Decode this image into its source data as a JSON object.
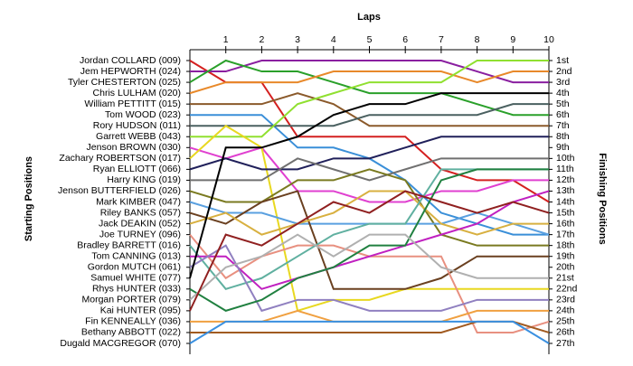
{
  "chart_data": {
    "type": "lap",
    "title": "Laps",
    "y_label": "Starting Positions",
    "y2_label": "Finishing Positions",
    "x": [
      0,
      1,
      2,
      3,
      4,
      5,
      6,
      7,
      8,
      9,
      10
    ],
    "xlim": [
      0,
      10
    ],
    "xticks": [
      1,
      2,
      3,
      4,
      5,
      6,
      7,
      8,
      9,
      10
    ],
    "ylim": [
      1,
      27
    ],
    "yticks": [
      {
        "value": 1,
        "label": "Jordan COLLARD (009)"
      },
      {
        "value": 2,
        "label": "Jem HEPWORTH (024)"
      },
      {
        "value": 3,
        "label": "Tyler CHESTERTON (025)"
      },
      {
        "value": 4,
        "label": "Chris LULHAM (020)"
      },
      {
        "value": 5,
        "label": "William PETTITT (015)"
      },
      {
        "value": 6,
        "label": "Tom WOOD (023)"
      },
      {
        "value": 7,
        "label": "Rory HUDSON (011)"
      },
      {
        "value": 8,
        "label": "Garrett WEBB (043)"
      },
      {
        "value": 9,
        "label": "Jenson BROWN (030)"
      },
      {
        "value": 10,
        "label": "Zachary ROBERTSON (017)"
      },
      {
        "value": 11,
        "label": "Ryan ELLIOTT (066)"
      },
      {
        "value": 12,
        "label": "Harry KING (019)"
      },
      {
        "value": 13,
        "label": "Jenson BUTTERFIELD (026)"
      },
      {
        "value": 14,
        "label": "Mark KIMBER (047)"
      },
      {
        "value": 15,
        "label": "Riley BANKS (057)"
      },
      {
        "value": 16,
        "label": "Jack DEAKIN (052)"
      },
      {
        "value": 17,
        "label": "Joe TURNEY (096)"
      },
      {
        "value": 18,
        "label": "Bradley BARRETT (016)"
      },
      {
        "value": 19,
        "label": "Tom CANNING (013)"
      },
      {
        "value": 20,
        "label": "Gordon MUTCH (061)"
      },
      {
        "value": 21,
        "label": "Samuel WHITE (077)"
      },
      {
        "value": 22,
        "label": "Rhys HUNTER (033)"
      },
      {
        "value": 23,
        "label": "Morgan PORTER (079)"
      },
      {
        "value": 24,
        "label": "Kai HUNTER (095)"
      },
      {
        "value": 25,
        "label": "Fin KENNEALLY (036)"
      },
      {
        "value": 26,
        "label": "Bethany ABBOTT (022)"
      },
      {
        "value": 27,
        "label": "Dugald MACGREGOR (070)"
      }
    ],
    "y2lim": [
      1,
      27
    ],
    "y2ticks": [
      {
        "value": 1,
        "label": "1st"
      },
      {
        "value": 2,
        "label": "2nd"
      },
      {
        "value": 3,
        "label": "3rd"
      },
      {
        "value": 4,
        "label": "4th"
      },
      {
        "value": 5,
        "label": "5th"
      },
      {
        "value": 6,
        "label": "6th"
      },
      {
        "value": 7,
        "label": "7th"
      },
      {
        "value": 8,
        "label": "8th"
      },
      {
        "value": 9,
        "label": "9th"
      },
      {
        "value": 10,
        "label": "10th"
      },
      {
        "value": 11,
        "label": "11th"
      },
      {
        "value": 12,
        "label": "12th"
      },
      {
        "value": 13,
        "label": "13th"
      },
      {
        "value": 14,
        "label": "14th"
      },
      {
        "value": 15,
        "label": "15th"
      },
      {
        "value": 16,
        "label": "16th"
      },
      {
        "value": 17,
        "label": "17th"
      },
      {
        "value": 18,
        "label": "18th"
      },
      {
        "value": 19,
        "label": "19th"
      },
      {
        "value": 20,
        "label": "20th"
      },
      {
        "value": 21,
        "label": "21st"
      },
      {
        "value": 22,
        "label": "22nd"
      },
      {
        "value": 23,
        "label": "23rd"
      },
      {
        "value": 24,
        "label": "24th"
      },
      {
        "value": 25,
        "label": "25th"
      },
      {
        "value": 26,
        "label": "26th"
      },
      {
        "value": 27,
        "label": "27th"
      }
    ],
    "series": [
      {
        "color": "#d42020",
        "values": [
          1,
          3,
          3,
          8,
          8,
          8,
          8,
          11,
          12,
          12,
          14
        ]
      },
      {
        "color": "#8a1fa0",
        "values": [
          2,
          2,
          1,
          1,
          1,
          1,
          1,
          1,
          2,
          3,
          3
        ]
      },
      {
        "color": "#2aa02a",
        "values": [
          3,
          1,
          2,
          2,
          3,
          4,
          4,
          4,
          5,
          6,
          6
        ]
      },
      {
        "color": "#e8892a",
        "values": [
          4,
          3,
          3,
          3,
          2,
          2,
          2,
          2,
          3,
          2,
          2
        ]
      },
      {
        "color": "#8b5a2b",
        "values": [
          5,
          5,
          5,
          4,
          5,
          7,
          7,
          7,
          7,
          7,
          7
        ]
      },
      {
        "color": "#3a8fd8",
        "values": [
          6,
          6,
          6,
          9,
          9,
          10,
          12,
          15,
          16,
          17,
          17
        ]
      },
      {
        "color": "#4a6060",
        "values": [
          7,
          7,
          7,
          7,
          7,
          6,
          6,
          6,
          6,
          5,
          5
        ]
      },
      {
        "color": "#90e030",
        "values": [
          8,
          8,
          8,
          5,
          4,
          3,
          3,
          3,
          1,
          1,
          1
        ]
      },
      {
        "color": "#e040d0",
        "values": [
          9,
          10,
          9,
          13,
          13,
          14,
          14,
          13,
          13,
          12,
          12
        ]
      },
      {
        "color": "#e8d820",
        "values": [
          10,
          7,
          9,
          24,
          23,
          23,
          22,
          22,
          22,
          22,
          22
        ]
      },
      {
        "color": "#20205a",
        "values": [
          11,
          10,
          11,
          11,
          10,
          10,
          9,
          8,
          8,
          8,
          8
        ]
      },
      {
        "color": "#707070",
        "values": [
          12,
          12,
          12,
          10,
          11,
          12,
          11,
          10,
          10,
          10,
          10
        ]
      },
      {
        "color": "#7a7a20",
        "values": [
          13,
          14,
          14,
          12,
          12,
          11,
          12,
          17,
          18,
          18,
          18
        ]
      },
      {
        "color": "#5aa0e0",
        "values": [
          14,
          15,
          15,
          16,
          16,
          16,
          16,
          16,
          15,
          16,
          17
        ]
      },
      {
        "color": "#6a4020",
        "values": [
          15,
          16,
          14,
          13,
          22,
          22,
          22,
          21,
          19,
          19,
          19
        ]
      },
      {
        "color": "#d8b040",
        "values": [
          16,
          15,
          17,
          16,
          15,
          13,
          13,
          16,
          17,
          16,
          16
        ]
      },
      {
        "color": "#e89080",
        "values": [
          17,
          21,
          19,
          18,
          18,
          19,
          19,
          19,
          26,
          26,
          25
        ]
      },
      {
        "color": "#60b0a0",
        "values": [
          18,
          22,
          21,
          19,
          17,
          16,
          16,
          11,
          11,
          11,
          11
        ]
      },
      {
        "color": "#c020c0",
        "values": [
          19,
          19,
          22,
          21,
          20,
          19,
          18,
          17,
          16,
          14,
          13
        ]
      },
      {
        "color": "#9080c0",
        "values": [
          20,
          18,
          24,
          23,
          23,
          24,
          24,
          24,
          23,
          23,
          23
        ]
      },
      {
        "color": "#000000",
        "values": [
          21,
          9,
          9,
          8,
          6,
          5,
          5,
          4,
          4,
          4,
          4
        ]
      },
      {
        "color": "#208040",
        "values": [
          22,
          24,
          23,
          21,
          20,
          18,
          18,
          12,
          11,
          11,
          11
        ]
      },
      {
        "color": "#b0b0b0",
        "values": [
          23,
          20,
          19,
          17,
          19,
          17,
          17,
          20,
          21,
          21,
          21
        ]
      },
      {
        "color": "#902020",
        "values": [
          24,
          17,
          18,
          16,
          14,
          15,
          13,
          14,
          15,
          14,
          15
        ]
      },
      {
        "color": "#f0a040",
        "values": [
          25,
          25,
          25,
          24,
          25,
          25,
          25,
          25,
          24,
          24,
          24
        ]
      },
      {
        "color": "#a05a20",
        "values": [
          26,
          26,
          26,
          26,
          26,
          26,
          26,
          26,
          25,
          25,
          26
        ]
      },
      {
        "color": "#3a90e0",
        "values": [
          27,
          25,
          25,
          25,
          25,
          25,
          25,
          25,
          25,
          25,
          27
        ]
      }
    ]
  }
}
